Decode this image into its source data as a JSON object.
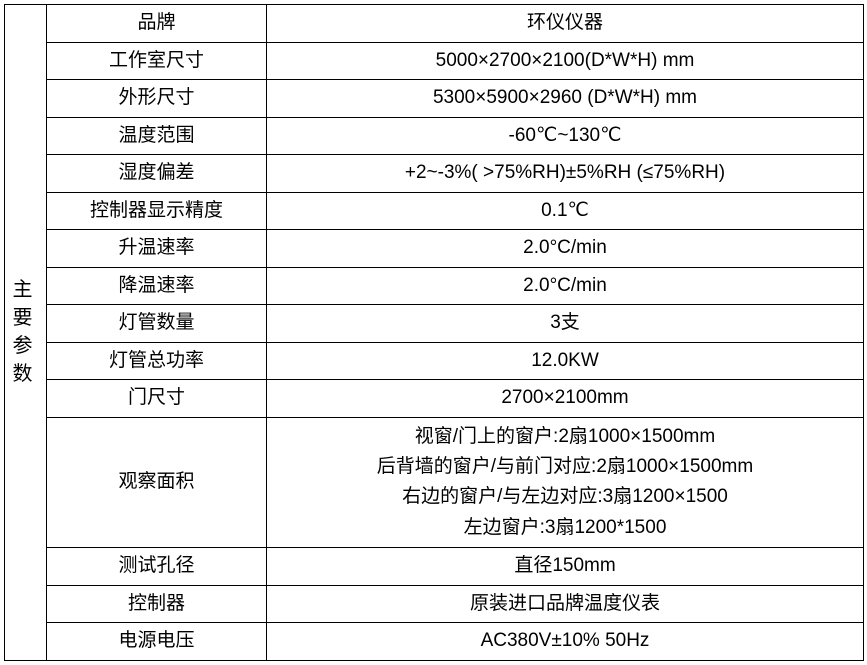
{
  "table": {
    "rowspan_label": "主要参数",
    "border_color": "#000000",
    "background_color": "#ffffff",
    "text_color": "#000000",
    "font_size": 19,
    "rows": [
      {
        "label": "品牌",
        "value": "环仪仪器"
      },
      {
        "label": "工作室尺寸",
        "value": "5000×2700×2100(D*W*H) mm"
      },
      {
        "label": "外形尺寸",
        "value": "5300×5900×2960 (D*W*H) mm"
      },
      {
        "label": "温度范围",
        "value": "-60℃~130℃"
      },
      {
        "label": "湿度偏差",
        "value": "+2~-3%( >75%RH)±5%RH (≤75%RH)"
      },
      {
        "label": "控制器显示精度",
        "value": "0.1℃"
      },
      {
        "label": "升温速率",
        "value": "2.0°C/min"
      },
      {
        "label": "降温速率",
        "value": "2.0°C/min"
      },
      {
        "label": "灯管数量",
        "value": "3支"
      },
      {
        "label": "灯管总功率",
        "value": "12.0KW"
      },
      {
        "label": "门尺寸",
        "value": "2700×2100mm"
      },
      {
        "label": "观察面积",
        "value": "视窗/门上的窗户:2扇1000×1500mm\n后背墙的窗户/与前门对应:2扇1000×1500mm\n右边的窗户/与左边对应:3扇1200×1500\n左边窗户:3扇1200*1500",
        "multiline": true
      },
      {
        "label": "测试孔径",
        "value": "直径150mm"
      },
      {
        "label": "控制器",
        "value": "原装进口品牌温度仪表"
      },
      {
        "label": "电源电压",
        "value": "AC380V±10% 50Hz"
      }
    ]
  }
}
